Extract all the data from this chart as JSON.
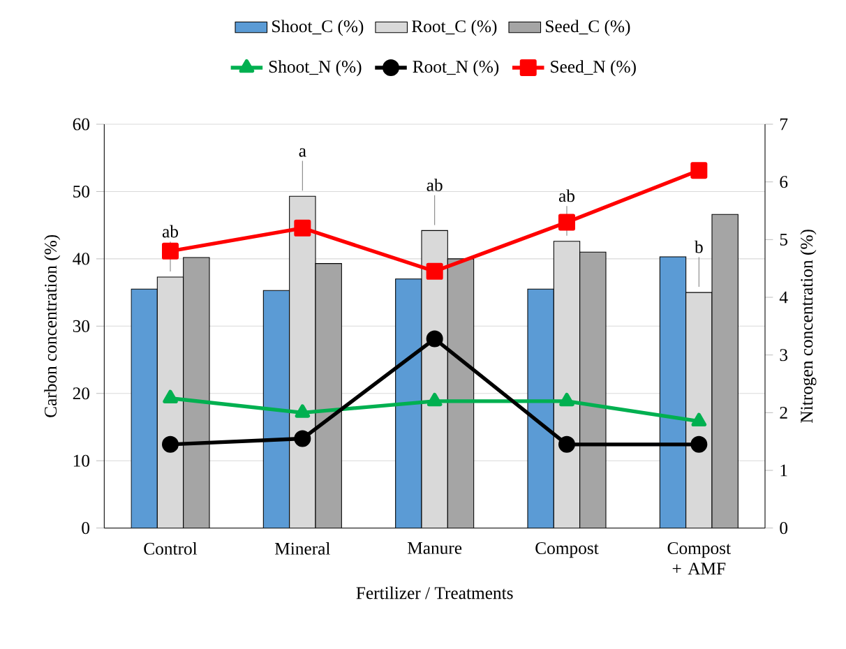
{
  "chart_data": {
    "type": "bar",
    "xlabel": "Fertilizer / Treatments",
    "ylabel": "Carbon  concentration (%)",
    "y2label": "Nitrogen concentration (%)",
    "categories": [
      "Control",
      "Mineral",
      "Manure",
      "Compost",
      "Compost + AMF"
    ],
    "series": [
      {
        "name": "Shoot_C (%)",
        "color": "#5b9bd5",
        "values": [
          35.5,
          35.3,
          37.0,
          35.5,
          40.3
        ]
      },
      {
        "name": "Root_C (%)",
        "color": "#d9d9d9",
        "values": [
          37.3,
          49.3,
          44.2,
          42.6,
          35.0
        ]
      },
      {
        "name": "Seed_C (%)",
        "color": "#a5a5a5",
        "values": [
          40.2,
          39.3,
          40.0,
          41.0,
          46.6
        ]
      },
      {
        "name": "Shoot_N (%)",
        "type": "line",
        "axis": "y2",
        "marker": "triangle",
        "color": "#00b050",
        "values": [
          2.25,
          2.0,
          2.2,
          2.2,
          1.85
        ]
      },
      {
        "name": "Root_N (%)",
        "type": "line",
        "axis": "y2",
        "marker": "circle",
        "color": "#000000",
        "values": [
          1.45,
          1.55,
          3.28,
          1.45,
          1.45
        ]
      },
      {
        "name": "Seed_N (%)",
        "type": "line",
        "axis": "y2",
        "marker": "square",
        "color": "#ff0000",
        "values": [
          4.8,
          5.2,
          4.45,
          5.3,
          6.2
        ]
      }
    ],
    "ylim": [
      0,
      60
    ],
    "yticks": [
      0,
      10,
      20,
      30,
      40,
      50,
      60
    ],
    "y2lim": [
      0,
      7
    ],
    "y2ticks": [
      0,
      1,
      2,
      3,
      4,
      5,
      6,
      7
    ],
    "grid": "y",
    "legend": "top",
    "annotations": [
      {
        "text": "ab",
        "x": "Control",
        "y": 37.3
      },
      {
        "text": "a",
        "x": "Mineral",
        "y": 49.3
      },
      {
        "text": "ab",
        "x": "Manure",
        "y": 44.2
      },
      {
        "text": "ab",
        "x": "Compost",
        "y": 42.6
      },
      {
        "text": "b",
        "x": "Compost + AMF",
        "y": 35.0
      }
    ]
  }
}
